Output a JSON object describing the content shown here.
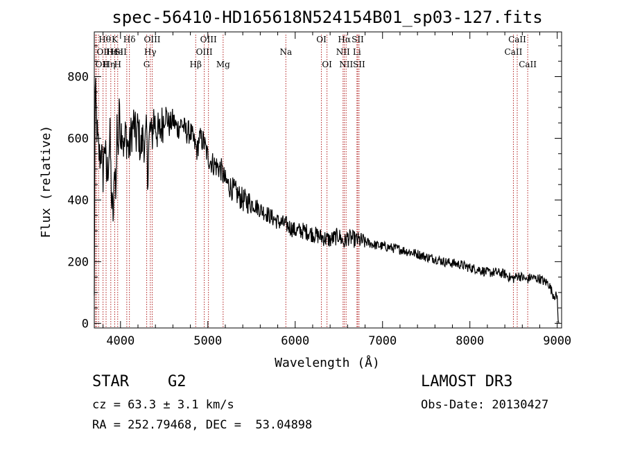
{
  "chart_data": {
    "type": "line",
    "title": "spec-56410-HD165618N524154B01_sp03-127.fits",
    "xlabel": "Wavelength (Å)",
    "ylabel": "Flux (relative)",
    "xlim": [
      3700,
      9050
    ],
    "ylim": [
      -15,
      945
    ],
    "xticks": [
      4000,
      5000,
      6000,
      7000,
      8000,
      9000
    ],
    "yticks": [
      0,
      200,
      400,
      600,
      800
    ],
    "grid": false,
    "series": [
      {
        "name": "flux",
        "x": [
          3700,
          3710,
          3725,
          3740,
          3760,
          3780,
          3800,
          3820,
          3840,
          3860,
          3880,
          3900,
          3920,
          3935,
          3950,
          3960,
          3975,
          3990,
          4000,
          4020,
          4040,
          4060,
          4080,
          4100,
          4120,
          4150,
          4180,
          4200,
          4230,
          4260,
          4280,
          4300,
          4310,
          4320,
          4340,
          4360,
          4380,
          4400,
          4440,
          4480,
          4520,
          4560,
          4600,
          4650,
          4700,
          4750,
          4800,
          4850,
          4880,
          4900,
          4950,
          5000,
          5050,
          5100,
          5150,
          5200,
          5300,
          5400,
          5500,
          5600,
          5700,
          5800,
          5900,
          6000,
          6100,
          6200,
          6300,
          6400,
          6500,
          6560,
          6600,
          6700,
          6800,
          6900,
          7000,
          7100,
          7200,
          7300,
          7400,
          7500,
          7600,
          7700,
          7800,
          7900,
          8000,
          8100,
          8200,
          8300,
          8400,
          8450,
          8500,
          8550,
          8600,
          8650,
          8700,
          8750,
          8800,
          8850,
          8900,
          8950,
          9000,
          9010,
          9020
        ],
        "y": [
          90,
          760,
          660,
          580,
          540,
          560,
          480,
          600,
          470,
          520,
          600,
          380,
          350,
          520,
          430,
          650,
          560,
          720,
          610,
          640,
          560,
          620,
          580,
          560,
          610,
          650,
          600,
          640,
          560,
          610,
          570,
          620,
          460,
          570,
          630,
          600,
          670,
          640,
          610,
          650,
          680,
          640,
          660,
          630,
          650,
          620,
          620,
          580,
          560,
          600,
          590,
          540,
          520,
          510,
          500,
          460,
          430,
          400,
          390,
          370,
          350,
          330,
          320,
          300,
          300,
          290,
          280,
          270,
          285,
          260,
          280,
          270,
          265,
          255,
          250,
          245,
          240,
          232,
          225,
          215,
          210,
          200,
          195,
          190,
          180,
          175,
          165,
          165,
          160,
          150,
          145,
          155,
          150,
          140,
          150,
          145,
          145,
          135,
          130,
          95,
          85,
          10,
          0
        ]
      }
    ],
    "lines": [
      {
        "w": 3713,
        "label": "OII",
        "row": 2,
        "align": "left"
      },
      {
        "w": 3727,
        "label": "OII",
        "row": 1,
        "align": "left"
      },
      {
        "w": 3750,
        "label": "Hθ",
        "row": 0,
        "align": "left"
      },
      {
        "w": 3800,
        "label": "Hη",
        "row": 2,
        "align": "left"
      },
      {
        "w": 3835,
        "label": "Hε",
        "row": 1,
        "align": "left"
      },
      {
        "w": 3889,
        "label": "He",
        "row": 1,
        "align": "left"
      },
      {
        "w": 3934,
        "label": "K",
        "row": 0,
        "align": "center"
      },
      {
        "w": 3968,
        "label": "H",
        "row": 2,
        "align": "center"
      },
      {
        "w": 4072,
        "label": "SII",
        "row": 1,
        "align": "right"
      },
      {
        "w": 4102,
        "label": "Hδ",
        "row": 0,
        "align": "center"
      },
      {
        "w": 4300,
        "label": "G",
        "row": 2,
        "align": "center"
      },
      {
        "w": 4341,
        "label": "Hγ",
        "row": 1,
        "align": "center"
      },
      {
        "w": 4363,
        "label": "OIII",
        "row": 0,
        "align": "center"
      },
      {
        "w": 4861,
        "label": "Hβ",
        "row": 2,
        "align": "center"
      },
      {
        "w": 4959,
        "label": "OIII",
        "row": 1,
        "align": "center"
      },
      {
        "w": 5007,
        "label": "OIII",
        "row": 0,
        "align": "center"
      },
      {
        "w": 5175,
        "label": "Mg",
        "row": 2,
        "align": "center"
      },
      {
        "w": 5893,
        "label": "Na",
        "row": 1,
        "align": "center"
      },
      {
        "w": 6300,
        "label": "OI",
        "row": 0,
        "align": "center"
      },
      {
        "w": 6364,
        "label": "OI",
        "row": 2,
        "align": "center"
      },
      {
        "w": 6548,
        "label": "NII",
        "row": 1,
        "align": "center"
      },
      {
        "w": 6563,
        "label": "Hα",
        "row": 0,
        "align": "center"
      },
      {
        "w": 6583,
        "label": "NII",
        "row": 2,
        "align": "center"
      },
      {
        "w": 6707,
        "label": "Li",
        "row": 1,
        "align": "center"
      },
      {
        "w": 6716,
        "label": "SII",
        "row": 0,
        "align": "center"
      },
      {
        "w": 6731,
        "label": "SII",
        "row": 2,
        "align": "center"
      },
      {
        "w": 8498,
        "label": "CaII",
        "row": 1,
        "align": "center"
      },
      {
        "w": 8542,
        "label": "CaII",
        "row": 0,
        "align": "center"
      },
      {
        "w": 8662,
        "label": "CaII",
        "row": 2,
        "align": "center"
      }
    ]
  },
  "info": {
    "object_class": "STAR",
    "subclass": "G2",
    "survey": "LAMOST DR3",
    "redshift": "cz = 63.3 ± 3.1 km/s",
    "obs_date": "Obs-Date: 20130427",
    "coords": "RA = 252.79468, DEC =  53.04898"
  },
  "colors": {
    "line_marker": "#b01c1c",
    "spectrum": "#000000",
    "axis": "#000000"
  }
}
